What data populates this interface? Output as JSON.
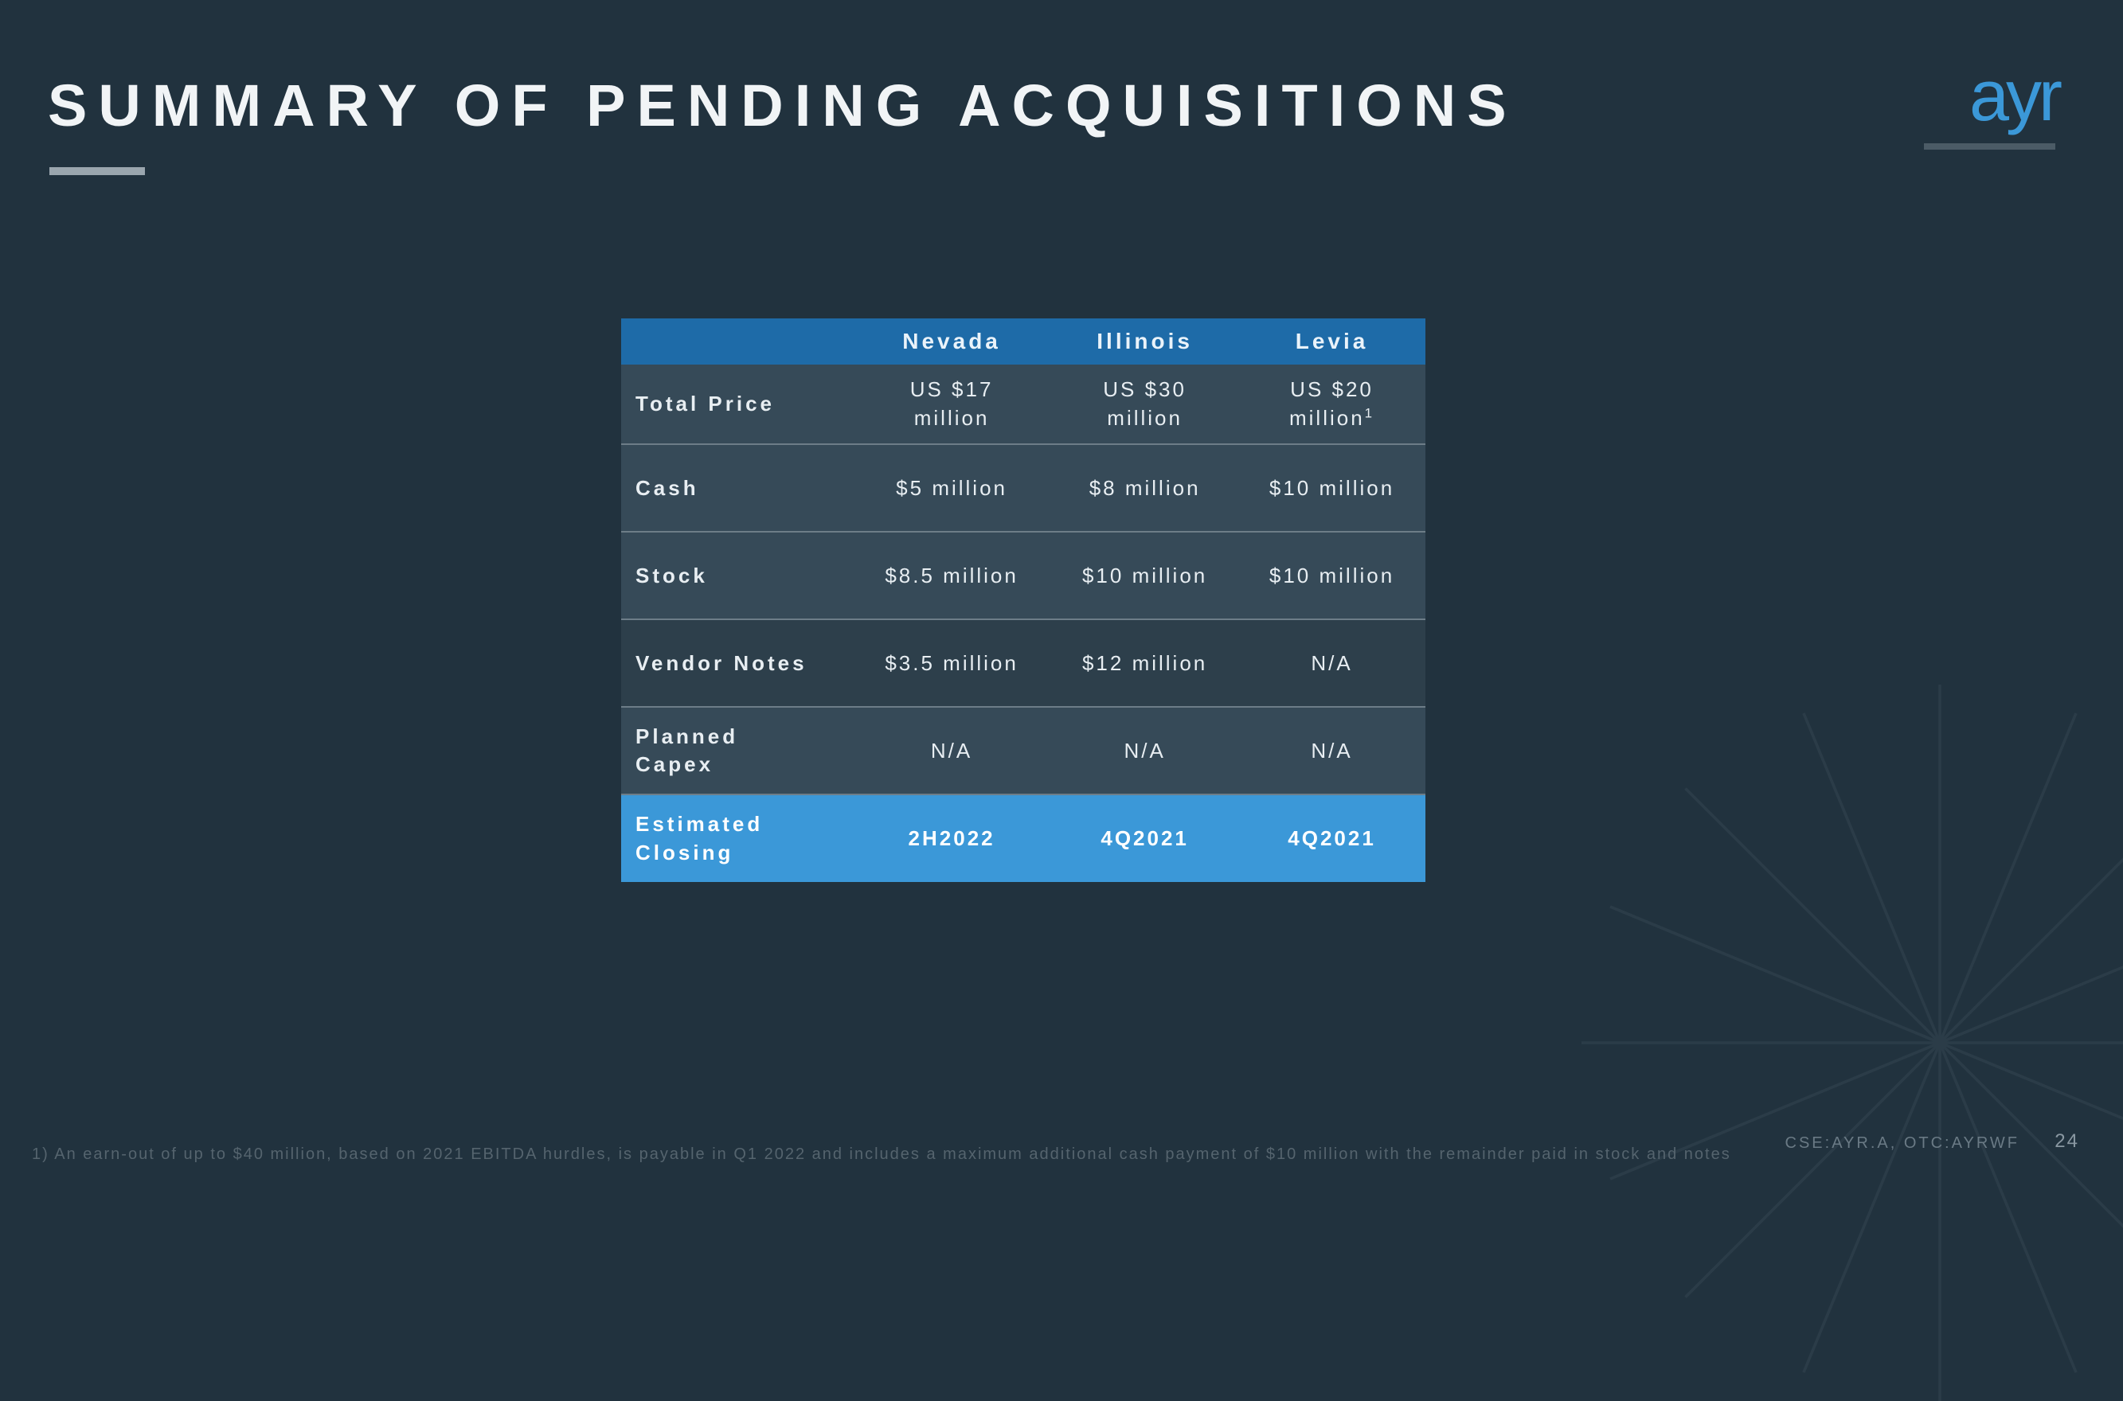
{
  "title": "SUMMARY OF PENDING ACQUISITIONS",
  "logo": "ayr",
  "colors": {
    "background": "#21323e",
    "accent_blue": "#3b98d8",
    "header_blue": "#1e6ba8",
    "row_bg": "#364a58",
    "row_alt_bg": "#2d3f4b",
    "row_border": "#6d7d88",
    "text": "#e8eef2",
    "muted": "#6a7a85"
  },
  "table": {
    "columns": [
      "",
      "Nevada",
      "Illinois",
      "Levia"
    ],
    "rows": [
      {
        "label": "Total Price",
        "cells": [
          "US $17 million",
          "US $30 million",
          "US $20 million¹"
        ],
        "two_line": true
      },
      {
        "label": "Cash",
        "cells": [
          "$5 million",
          "$8 million",
          "$10 million"
        ]
      },
      {
        "label": "Stock",
        "cells": [
          "$8.5 million",
          "$10 million",
          "$10 million"
        ]
      },
      {
        "label": "Vendor Notes",
        "cells": [
          "$3.5 million",
          "$12 million",
          "N/A"
        ],
        "alt": true
      },
      {
        "label": "Planned Capex",
        "cells": [
          "N/A",
          "N/A",
          "N/A"
        ],
        "two_line_label": true
      },
      {
        "label": "Estimated Closing",
        "cells": [
          "2H2022",
          "4Q2021",
          "4Q2021"
        ],
        "highlight": true,
        "two_line_label": true
      }
    ]
  },
  "footnote": "1)  An earn-out of up to $40 million, based on 2021 EBITDA hurdles, is payable in Q1 2022 and includes a maximum additional cash payment of $10 million with the remainder paid in stock and notes",
  "ticker": "CSE:AYR.A, OTC:AYRWF",
  "page_number": "24"
}
